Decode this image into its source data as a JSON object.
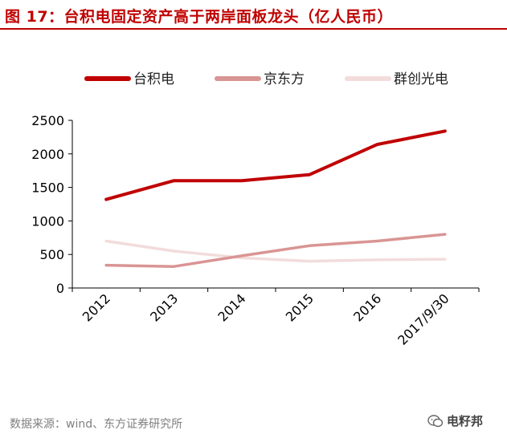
{
  "header": {
    "title": "图 17：台积电固定资产高于两岸面板龙头（亿人民币）"
  },
  "chart_data": {
    "type": "line",
    "title": "图 17：台积电固定资产高于两岸面板龙头（亿人民币）",
    "xlabel": "",
    "ylabel": "",
    "categories": [
      "2012",
      "2013",
      "2014",
      "2015",
      "2016",
      "2017/9/30"
    ],
    "ylim": [
      0,
      2500
    ],
    "yticks": [
      0,
      500,
      1000,
      1500,
      2000,
      2500
    ],
    "grid": false,
    "legend_position": "top",
    "series": [
      {
        "name": "台积电",
        "color": "#c00000",
        "values": [
          1320,
          1600,
          1600,
          1690,
          2140,
          2340
        ]
      },
      {
        "name": "京东方",
        "color": "#d99594",
        "values": [
          340,
          320,
          480,
          630,
          700,
          800
        ]
      },
      {
        "name": "群创光电",
        "color": "#f2dcdb",
        "values": [
          700,
          550,
          450,
          400,
          420,
          430
        ]
      }
    ]
  },
  "footer": {
    "source": "数据来源：wind、东方证券研究所",
    "watermark": "电籽邦"
  }
}
